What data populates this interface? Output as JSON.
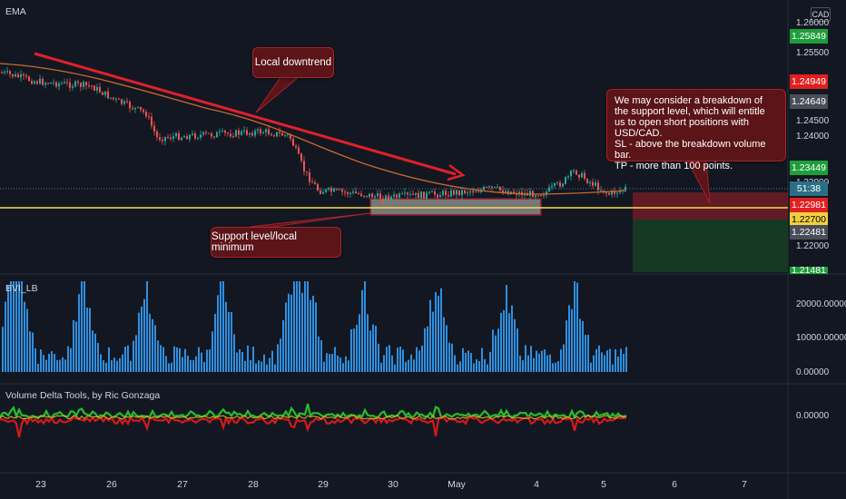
{
  "indicators": {
    "main": "EMA",
    "bvi": "BVI_LB",
    "vdt": "Volume Delta Tools, by Ric Gonzaga"
  },
  "currency_button": "CAD",
  "price_axis": [
    "1.26000",
    "1.25500",
    "1.24500",
    "1.24000",
    "1.23000",
    "1.22000"
  ],
  "bvi_axis": [
    "20000.00000",
    "10000.00000",
    "0.00000"
  ],
  "vdt_axis": [
    "0.00000"
  ],
  "x_axis": [
    "23",
    "26",
    "27",
    "28",
    "29",
    "30",
    "May",
    "4",
    "5",
    "6",
    "7"
  ],
  "price_tags": [
    {
      "label": "1.25849",
      "color": "#1e9e3c"
    },
    {
      "label": "1.24949",
      "color": "#e02020"
    },
    {
      "label": "1.24649",
      "color": "#4a4e58"
    },
    {
      "label": "1.23449",
      "color": "#1e9e3c"
    },
    {
      "label": "51:38",
      "color": "#2b6f86"
    },
    {
      "label": "1.22981",
      "color": "#e02020"
    },
    {
      "label": "1.22700",
      "color": "#f0d040",
      "text_color": "#000000"
    },
    {
      "label": "1.22481",
      "color": "#4a4e58"
    },
    {
      "label": "1.21481",
      "color": "#1e9e3c"
    }
  ],
  "annotations": {
    "downtrend": "Local downtrend",
    "support": "Support level/local minimum",
    "note": [
      "We may consider a breakdown of",
      "the support level, which will entitle",
      "us to open short positions with USD/CAD.",
      "SL - above the breakdown volume bar.",
      "TP - more than 100 points."
    ]
  },
  "colors": {
    "background": "#131722",
    "bull": "#26a69a",
    "bear": "#ef5350",
    "ema": "#c86a2a",
    "trendline": "#e0202a",
    "support_line": "#f5e050",
    "volume_bar": "#2f8fe0",
    "delta_pos": "#22c02a",
    "delta_neg": "#d41a1a"
  }
}
